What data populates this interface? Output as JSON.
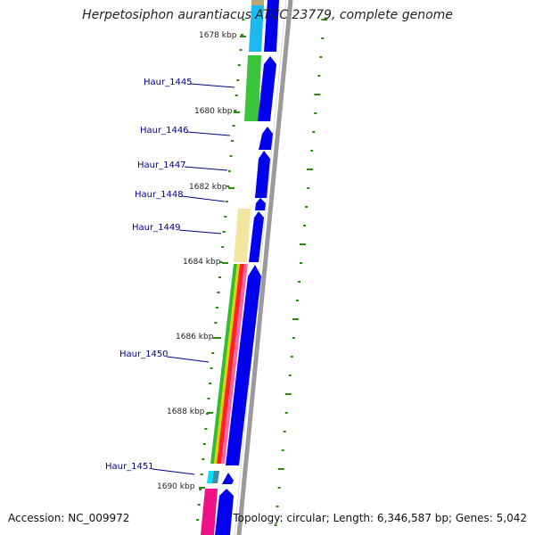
{
  "header": {
    "title": "Herpetosiphon aurantiacus ATCC 23779, complete genome"
  },
  "footer": {
    "accession": "Accession: NC_009972",
    "summary": "Topology: circular; Length: 6,346,587 bp; Genes: 5,042"
  },
  "scale_labels": [
    "1678 kbp",
    "1680 kbp",
    "1682 kbp",
    "1684 kbp",
    "1686 kbp",
    "1688 kbp",
    "1690 kbp"
  ],
  "genes": [
    {
      "name": "Haur_1445"
    },
    {
      "name": "Haur_1446"
    },
    {
      "name": "Haur_1447"
    },
    {
      "name": "Haur_1448"
    },
    {
      "name": "Haur_1449"
    },
    {
      "name": "Haur_1450"
    },
    {
      "name": "Haur_1451"
    }
  ],
  "colors": {
    "cds": "#0000ee",
    "label_line": "#00008b",
    "dots": "#2a8a10",
    "backbone": "#888888"
  }
}
